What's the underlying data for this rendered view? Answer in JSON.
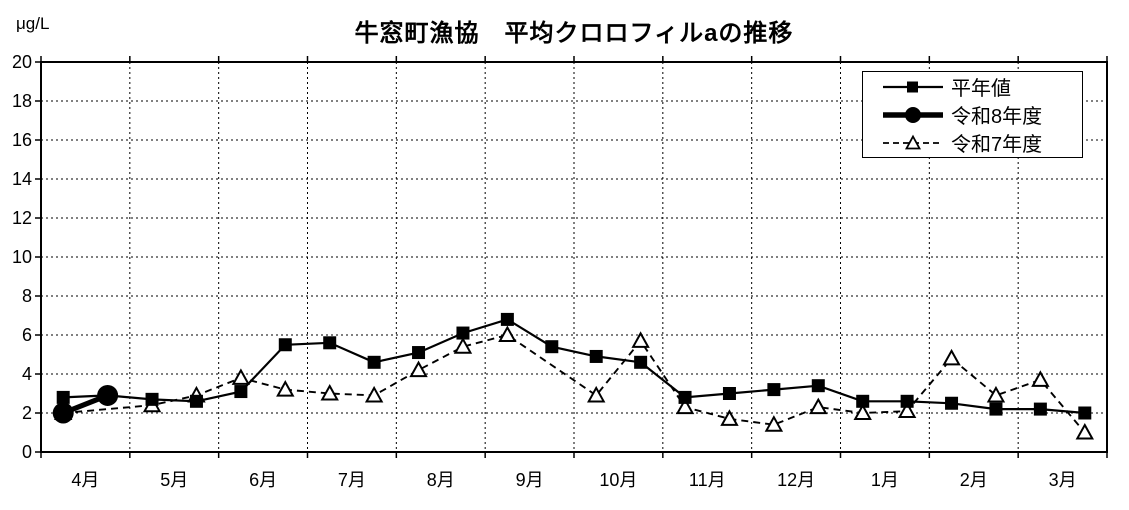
{
  "title": "牛窓町漁協　平均クロロフィルaの推移",
  "chart_data": {
    "type": "line",
    "title": "牛窓町漁協　平均クロロフィルaの推移",
    "grid": true,
    "legend_position": "top-right-inside",
    "colors": {
      "line": "#000000",
      "background": "#ffffff"
    },
    "y_axis": {
      "unit": "μg/L",
      "min": 0,
      "max": 20,
      "tick_step": 2,
      "tick_labels": [
        "0",
        "2",
        "4",
        "6",
        "8",
        "10",
        "12",
        "14",
        "16",
        "18",
        "20"
      ]
    },
    "x_axis": {
      "categories": [
        "4月",
        "5月",
        "6月",
        "7月",
        "8月",
        "9月",
        "10月",
        "11月",
        "12月",
        "1月",
        "2月",
        "3月"
      ],
      "points_per_month": 2
    },
    "series": [
      {
        "key": "heinen",
        "name": "平年値",
        "line": "solid-thin",
        "marker": "filled-square",
        "color": "#000000",
        "values": [
          2.8,
          2.9,
          2.7,
          2.6,
          3.1,
          5.5,
          5.6,
          4.6,
          5.1,
          6.1,
          6.8,
          5.4,
          4.9,
          4.6,
          2.8,
          3.0,
          3.2,
          3.4,
          2.6,
          2.6,
          2.5,
          2.2,
          2.2,
          2.0
        ]
      },
      {
        "key": "reiwa8",
        "name": "令和8年度",
        "line": "solid-thick",
        "marker": "filled-circle",
        "color": "#000000",
        "values": [
          2.0,
          2.9,
          null,
          null,
          null,
          null,
          null,
          null,
          null,
          null,
          null,
          null,
          null,
          null,
          null,
          null,
          null,
          null,
          null,
          null,
          null,
          null,
          null,
          null
        ]
      },
      {
        "key": "reiwa7",
        "name": "令和7年度",
        "line": "dashed",
        "marker": "open-triangle",
        "color": "#000000",
        "values": [
          2.0,
          null,
          2.4,
          2.9,
          3.8,
          3.2,
          3.0,
          2.9,
          4.2,
          5.4,
          6.0,
          null,
          2.9,
          5.7,
          2.3,
          1.7,
          1.4,
          2.3,
          2.0,
          2.1,
          4.8,
          2.9,
          3.7,
          1.0
        ]
      }
    ]
  }
}
